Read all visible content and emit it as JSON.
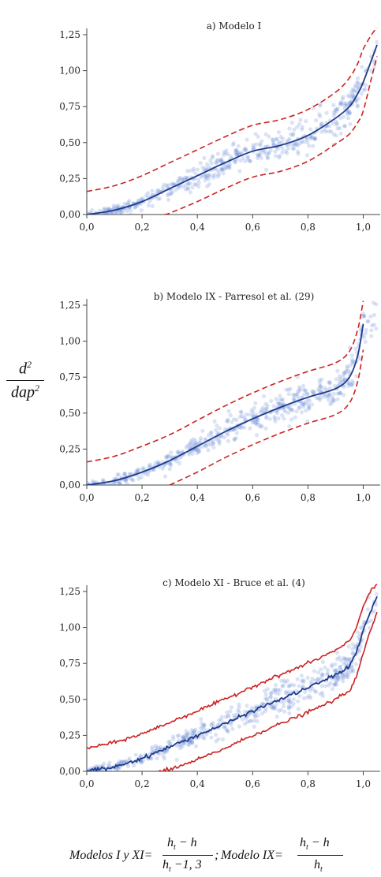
{
  "chart_data": [
    {
      "type": "scatter",
      "title": "a) Modelo I",
      "xlim": [
        0.0,
        1.05
      ],
      "ylim": [
        0.0,
        1.25
      ],
      "xticks": [
        "0,0",
        "0,2",
        "0,4",
        "0,6",
        "0,8",
        "1,0"
      ],
      "yticks": [
        "0,00",
        "0,25",
        "0,50",
        "0,75",
        "1,00",
        "1,25"
      ],
      "series": [
        {
          "role": "fitted",
          "color": "#1f3a8a",
          "x": [
            0.0,
            0.1,
            0.2,
            0.3,
            0.4,
            0.5,
            0.6,
            0.7,
            0.8,
            0.9,
            0.95,
            0.98,
            1.0,
            1.05
          ],
          "y": [
            0.0,
            0.03,
            0.09,
            0.18,
            0.27,
            0.36,
            0.44,
            0.48,
            0.55,
            0.67,
            0.75,
            0.84,
            0.92,
            1.18
          ]
        },
        {
          "role": "upper-bound",
          "color": "#cc2222",
          "x": [
            0.0,
            0.1,
            0.2,
            0.3,
            0.4,
            0.5,
            0.6,
            0.7,
            0.8,
            0.9,
            0.95,
            0.98,
            1.0,
            1.03,
            1.05
          ],
          "y": [
            0.16,
            0.2,
            0.27,
            0.36,
            0.45,
            0.54,
            0.62,
            0.66,
            0.73,
            0.85,
            0.95,
            1.05,
            1.15,
            1.25,
            1.3
          ]
        },
        {
          "role": "lower-bound",
          "color": "#cc2222",
          "x": [
            0.28,
            0.3,
            0.4,
            0.5,
            0.6,
            0.7,
            0.8,
            0.9,
            0.95,
            0.98,
            1.0,
            1.03,
            1.05
          ],
          "y": [
            0.0,
            0.01,
            0.09,
            0.18,
            0.26,
            0.3,
            0.37,
            0.49,
            0.56,
            0.64,
            0.72,
            0.95,
            1.1
          ]
        }
      ]
    },
    {
      "type": "scatter",
      "title": "b) Modelo IX - Parresol et al. (29)",
      "xlim": [
        0.0,
        1.05
      ],
      "ylim": [
        0.0,
        1.25
      ],
      "xticks": [
        "0,0",
        "0,2",
        "0,4",
        "0,6",
        "0,8",
        "1,0"
      ],
      "yticks": [
        "0,00",
        "0,25",
        "0,50",
        "0,75",
        "1,00",
        "1,25"
      ],
      "series": [
        {
          "role": "fitted",
          "color": "#1f3a8a",
          "x": [
            0.0,
            0.1,
            0.2,
            0.3,
            0.4,
            0.5,
            0.6,
            0.7,
            0.8,
            0.9,
            0.95,
            0.98,
            1.0
          ],
          "y": [
            0.0,
            0.03,
            0.09,
            0.17,
            0.27,
            0.37,
            0.46,
            0.54,
            0.61,
            0.67,
            0.75,
            0.9,
            1.12
          ]
        },
        {
          "role": "upper-bound",
          "color": "#cc2222",
          "x": [
            0.0,
            0.1,
            0.2,
            0.3,
            0.4,
            0.5,
            0.6,
            0.7,
            0.8,
            0.9,
            0.95,
            0.98,
            1.0
          ],
          "y": [
            0.16,
            0.2,
            0.27,
            0.35,
            0.45,
            0.55,
            0.64,
            0.72,
            0.79,
            0.85,
            0.93,
            1.08,
            1.28
          ]
        },
        {
          "role": "lower-bound",
          "color": "#cc2222",
          "x": [
            0.3,
            0.4,
            0.5,
            0.6,
            0.7,
            0.8,
            0.9,
            0.95,
            0.98,
            1.0
          ],
          "y": [
            0.0,
            0.09,
            0.19,
            0.28,
            0.36,
            0.43,
            0.49,
            0.57,
            0.72,
            0.94
          ]
        }
      ]
    },
    {
      "type": "scatter",
      "title": "c) Modelo XI - Bruce et al. (4)",
      "xlim": [
        0.0,
        1.05
      ],
      "ylim": [
        0.0,
        1.25
      ],
      "xticks": [
        "0,0",
        "0,2",
        "0,4",
        "0,6",
        "0,8",
        "1,0"
      ],
      "yticks": [
        "0,00",
        "0,25",
        "0,50",
        "0,75",
        "1,00",
        "1,25"
      ],
      "series": [
        {
          "role": "fitted",
          "color": "#1f3a8a",
          "x": [
            0.0,
            0.1,
            0.2,
            0.3,
            0.4,
            0.5,
            0.6,
            0.7,
            0.8,
            0.9,
            0.95,
            0.98,
            1.0,
            1.05
          ],
          "y": [
            0.0,
            0.03,
            0.09,
            0.17,
            0.25,
            0.33,
            0.42,
            0.5,
            0.58,
            0.67,
            0.73,
            0.85,
            0.98,
            1.22
          ]
        },
        {
          "role": "upper-bound",
          "color": "#cc2222",
          "x": [
            0.0,
            0.1,
            0.2,
            0.3,
            0.4,
            0.5,
            0.6,
            0.7,
            0.8,
            0.9,
            0.95,
            0.98,
            1.0,
            1.03,
            1.05
          ],
          "y": [
            0.16,
            0.2,
            0.26,
            0.34,
            0.42,
            0.5,
            0.59,
            0.67,
            0.75,
            0.84,
            0.9,
            1.02,
            1.15,
            1.27,
            1.3
          ]
        },
        {
          "role": "lower-bound",
          "color": "#cc2222",
          "x": [
            0.26,
            0.3,
            0.4,
            0.5,
            0.6,
            0.7,
            0.8,
            0.9,
            0.95,
            0.98,
            1.0,
            1.03,
            1.05
          ],
          "y": [
            0.0,
            0.01,
            0.08,
            0.16,
            0.25,
            0.33,
            0.41,
            0.5,
            0.56,
            0.68,
            0.82,
            1.0,
            1.1
          ]
        }
      ]
    }
  ],
  "y_axis_label": {
    "numerator": "d",
    "numerator_exp": "2",
    "denominator": "dap",
    "denominator_exp": "2"
  },
  "formula": {
    "part1": "Modelos I y XI=",
    "frac1_num": "h",
    "frac1_num_sub": "t",
    "frac1_num_rest": " − h",
    "frac1_den": "h",
    "frac1_den_sub": "t",
    "frac1_den_rest": " −1, 3",
    "sep": ";",
    "part2": "Modelo IX=",
    "frac2_num": "h",
    "frac2_num_sub": "t",
    "frac2_num_rest": " − h",
    "frac2_den": "h",
    "frac2_den_sub": "t"
  }
}
